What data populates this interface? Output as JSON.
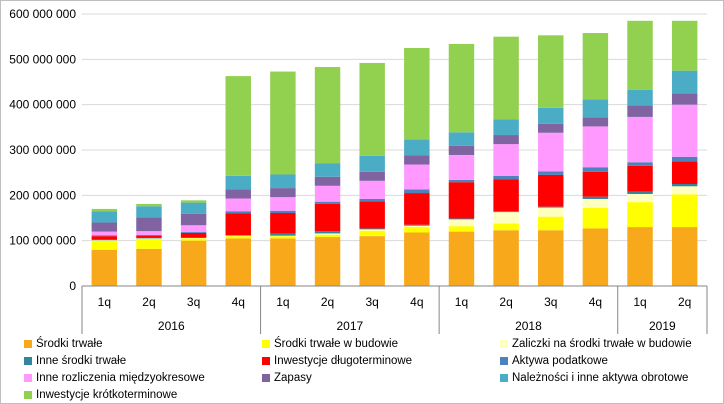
{
  "chart_data": {
    "type": "bar",
    "stacked": true,
    "title": "",
    "xlabel": "",
    "ylabel": "",
    "ylim": [
      0,
      600000000
    ],
    "yticks": [
      "0",
      "100 000 000",
      "200 000 000",
      "300 000 000",
      "400 000 000",
      "500 000 000",
      "600 000 000"
    ],
    "grid": true,
    "legend_position": "bottom",
    "categories": [
      "1q",
      "2q",
      "3q",
      "4q",
      "1q",
      "2q",
      "3q",
      "4q",
      "1q",
      "2q",
      "3q",
      "4q",
      "1q",
      "2q"
    ],
    "years": [
      {
        "label": "2016",
        "count": 4
      },
      {
        "label": "2017",
        "count": 4
      },
      {
        "label": "2018",
        "count": 4
      },
      {
        "label": "2019",
        "count": 2
      }
    ],
    "series": [
      {
        "name": "Środki trwałe",
        "color": "#f7a81b",
        "values": [
          80000000,
          82000000,
          100000000,
          105000000,
          105000000,
          108000000,
          110000000,
          118000000,
          120000000,
          123000000,
          123000000,
          127000000,
          130000000,
          130000000
        ]
      },
      {
        "name": "Środki trwałe w budowie",
        "color": "#ffff00",
        "values": [
          20000000,
          22000000,
          5000000,
          5000000,
          5000000,
          5000000,
          12000000,
          12000000,
          12000000,
          15000000,
          30000000,
          45000000,
          55000000,
          72000000
        ]
      },
      {
        "name": "Zaliczki na środki trwałe w budowie",
        "color": "#ffffc0",
        "values": [
          1000000,
          1000000,
          1000000,
          1000000,
          1000000,
          3000000,
          3000000,
          3000000,
          15000000,
          25000000,
          20000000,
          20000000,
          18000000,
          18000000
        ]
      },
      {
        "name": "Inne środki trwałe",
        "color": "#31859c",
        "values": [
          1000000,
          1000000,
          1000000,
          1000000,
          5000000,
          5000000,
          2000000,
          2000000,
          2000000,
          2000000,
          2000000,
          5000000,
          5000000,
          5000000
        ]
      },
      {
        "name": "Inwestycje długoterminowe",
        "color": "#ff0000",
        "values": [
          8000000,
          5000000,
          10000000,
          48000000,
          45000000,
          60000000,
          60000000,
          70000000,
          80000000,
          70000000,
          70000000,
          55000000,
          57000000,
          50000000
        ]
      },
      {
        "name": "Aktywa podatkowe",
        "color": "#4f81bd",
        "values": [
          2000000,
          2000000,
          2000000,
          5000000,
          5000000,
          5000000,
          5000000,
          8000000,
          5000000,
          8000000,
          8000000,
          10000000,
          8000000,
          10000000
        ]
      },
      {
        "name": "Inne rozliczenia międzyokresowe",
        "color": "#ff99ff",
        "values": [
          8000000,
          8000000,
          15000000,
          28000000,
          30000000,
          35000000,
          40000000,
          55000000,
          55000000,
          70000000,
          85000000,
          90000000,
          100000000,
          115000000
        ]
      },
      {
        "name": "Zapasy",
        "color": "#8064a2",
        "values": [
          20000000,
          30000000,
          25000000,
          20000000,
          20000000,
          20000000,
          20000000,
          20000000,
          20000000,
          20000000,
          20000000,
          20000000,
          25000000,
          25000000
        ]
      },
      {
        "name": "Należności i inne aktywa obrotowe",
        "color": "#4bacc6",
        "values": [
          25000000,
          25000000,
          25000000,
          30000000,
          30000000,
          30000000,
          35000000,
          35000000,
          30000000,
          35000000,
          35000000,
          40000000,
          35000000,
          50000000
        ]
      },
      {
        "name": "Inwestycje krótkoterminowe",
        "color": "#92d050",
        "values": [
          5000000,
          5000000,
          5000000,
          220000000,
          227000000,
          212000000,
          205000000,
          202000000,
          195000000,
          182000000,
          160000000,
          146000000,
          152000000,
          110000000
        ]
      }
    ]
  }
}
